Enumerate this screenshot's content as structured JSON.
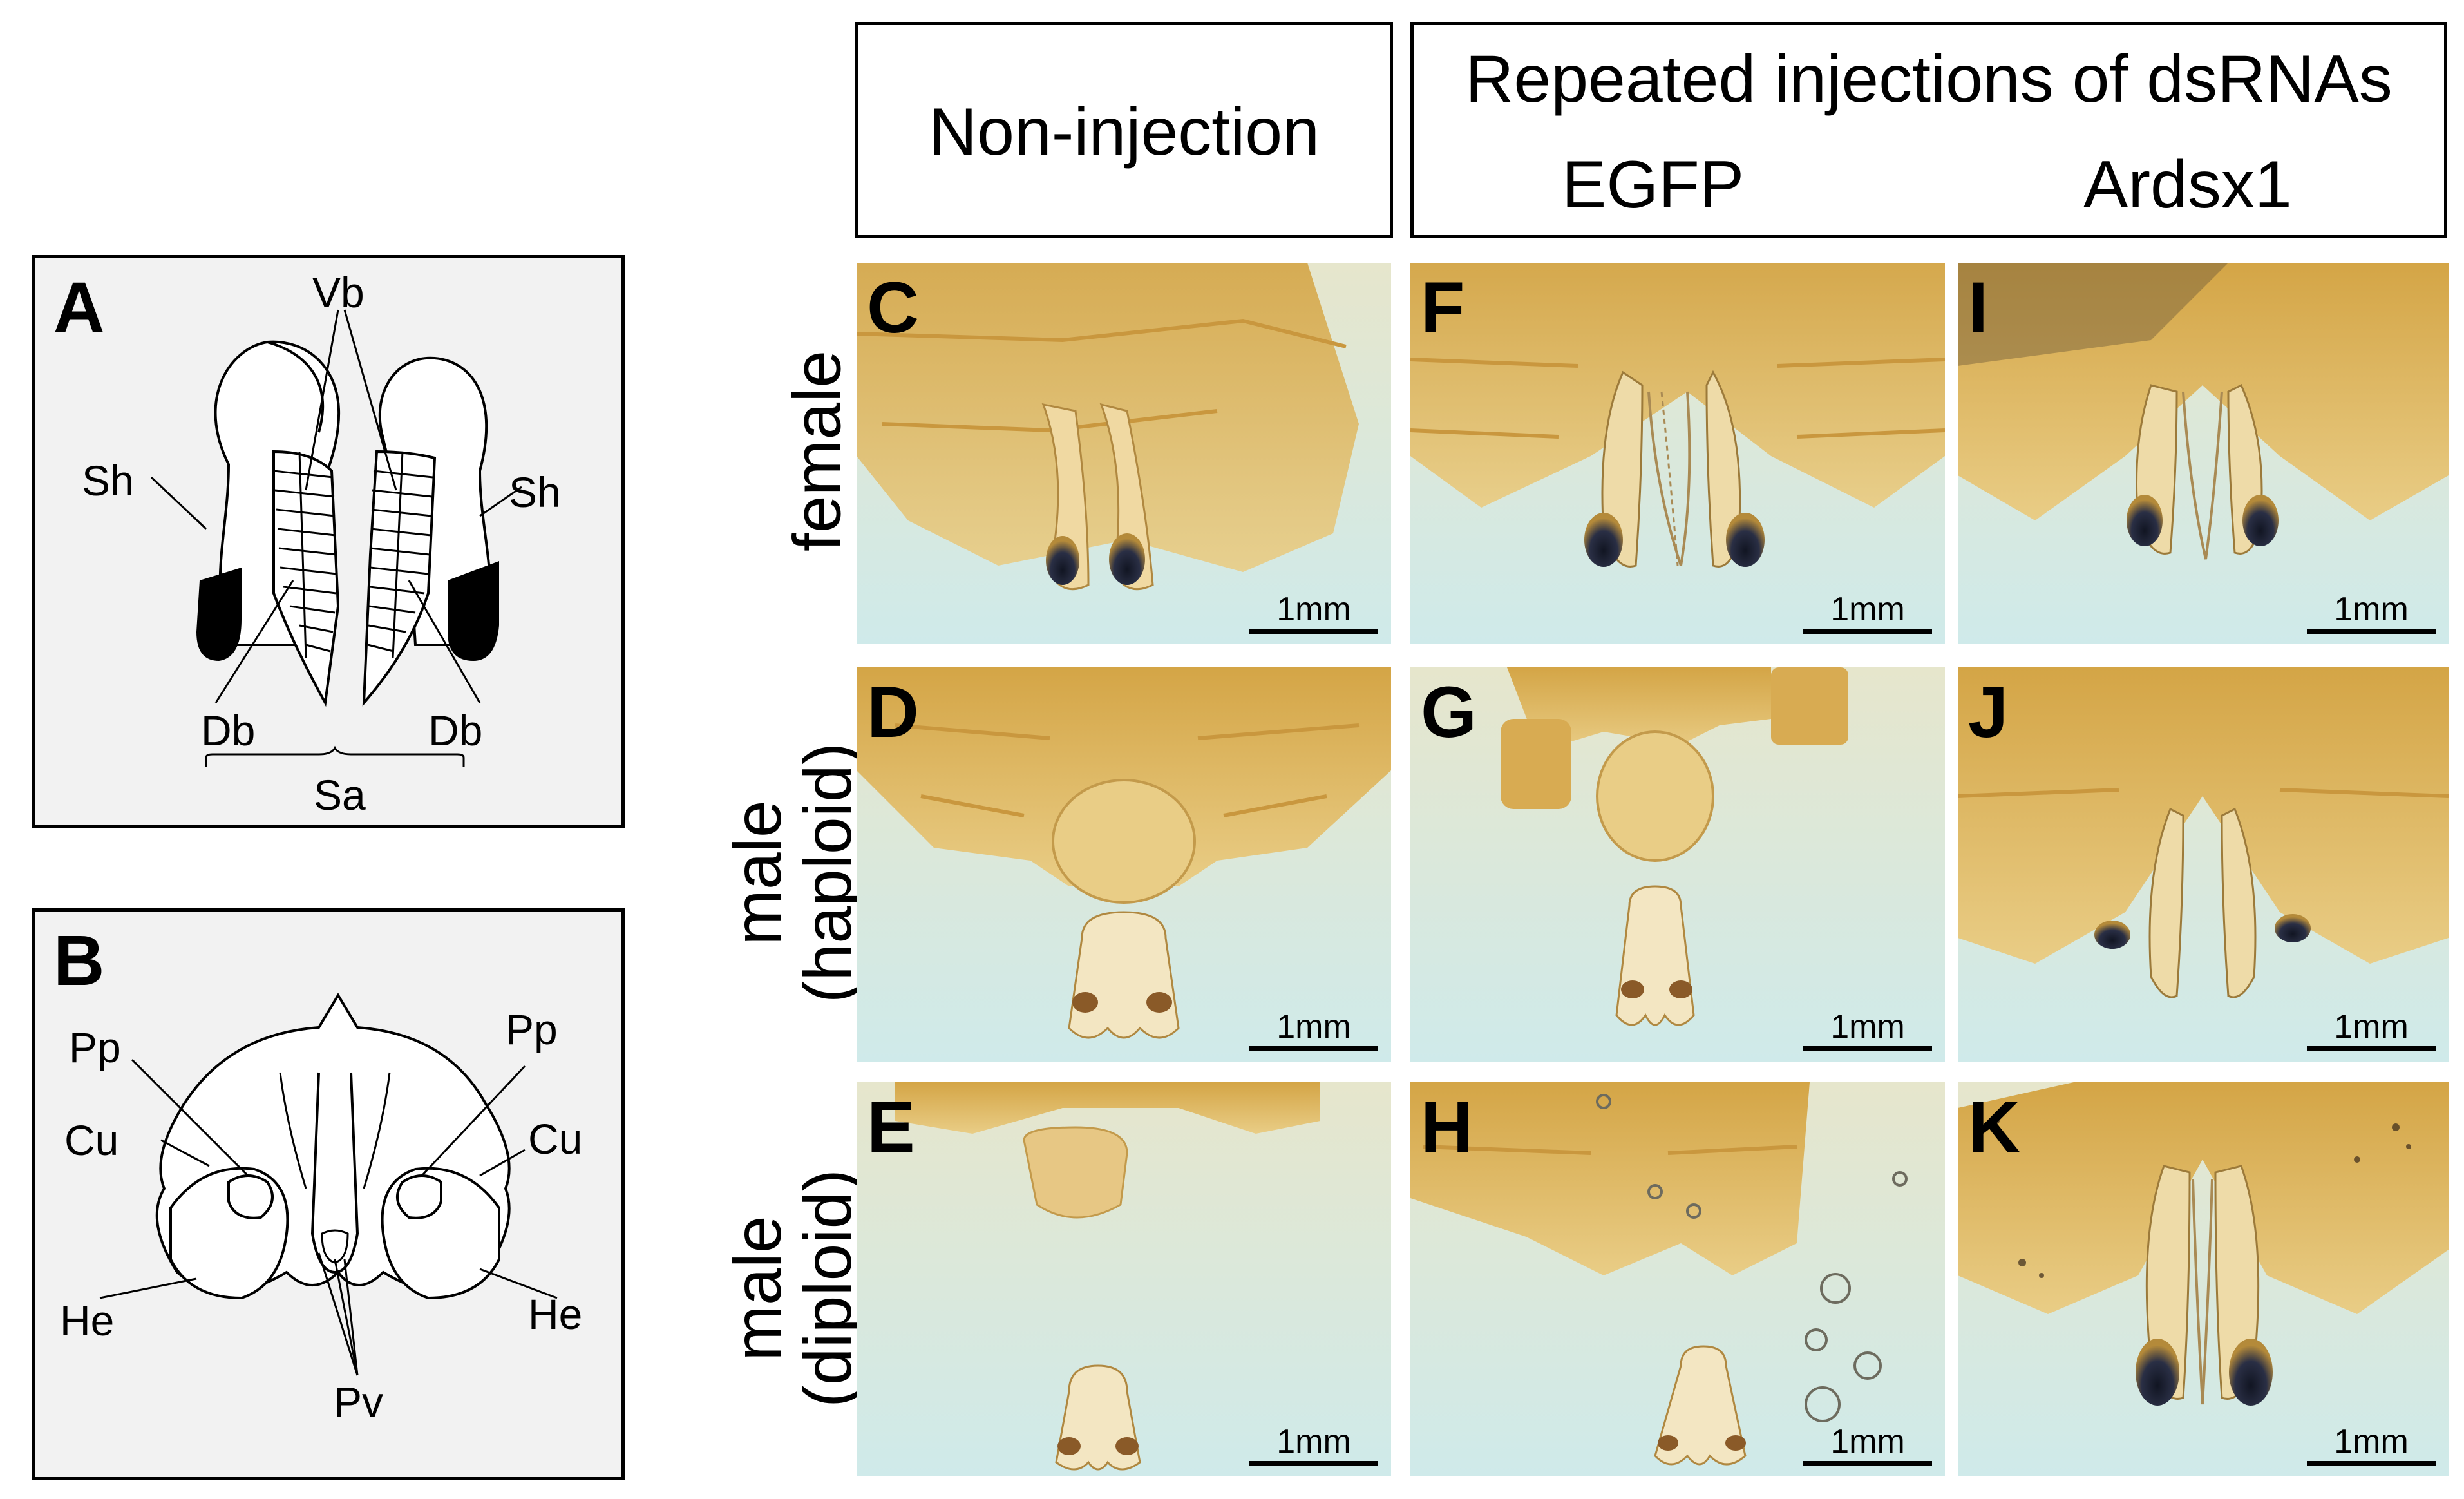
{
  "panel_a": {
    "letter": "A",
    "labels": {
      "vb": "Vb",
      "sh_left": "Sh",
      "sh_right": "Sh",
      "db_left": "Db",
      "db_right": "Db",
      "sa": "Sa"
    }
  },
  "panel_b": {
    "letter": "B",
    "labels": {
      "pp_left": "Pp",
      "pp_right": "Pp",
      "cu_left": "Cu",
      "cu_right": "Cu",
      "he_left": "He",
      "he_right": "He",
      "pv": "Pv"
    }
  },
  "headers": {
    "non_injection": "Non-injection",
    "repeated": "Repeated injections of dsRNAs",
    "egfp": "EGFP",
    "ardsx1": "Ardsx1"
  },
  "rows": {
    "female": "female",
    "male_haploid_1": "male",
    "male_haploid_2": "(haploid)",
    "male_diploid_1": "male",
    "male_diploid_2": "(diploid)"
  },
  "panels": {
    "C": {
      "letter": "C",
      "scale": "1mm"
    },
    "D": {
      "letter": "D",
      "scale": "1mm"
    },
    "E": {
      "letter": "E",
      "scale": "1mm"
    },
    "F": {
      "letter": "F",
      "scale": "1mm"
    },
    "G": {
      "letter": "G",
      "scale": "1mm"
    },
    "H": {
      "letter": "H",
      "scale": "1mm"
    },
    "I": {
      "letter": "I",
      "scale": "1mm"
    },
    "J": {
      "letter": "J",
      "scale": "1mm"
    },
    "K": {
      "letter": "K",
      "scale": "1mm"
    }
  },
  "colors": {
    "background_photo": "#d6ecec",
    "tissue_light": "#e8c877",
    "tissue_dark": "#d7a94a",
    "sheath_dark": "#1e2233"
  }
}
